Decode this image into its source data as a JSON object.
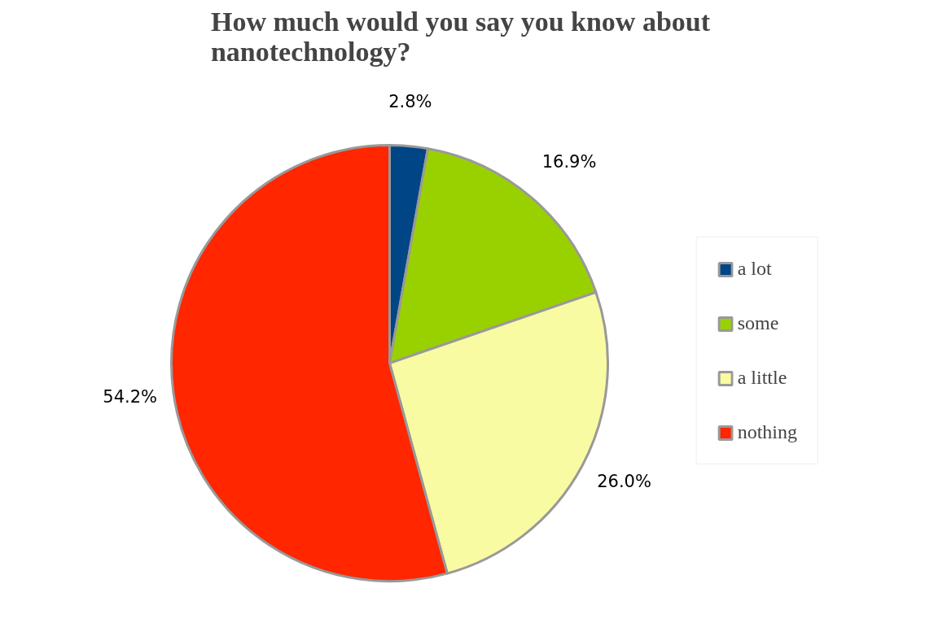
{
  "chart_data": {
    "type": "pie",
    "title": "How much would you say you know about\nnanotechnology?",
    "categories": [
      "a lot",
      "some",
      "a little",
      "nothing"
    ],
    "values": [
      2.8,
      16.9,
      26.0,
      54.2
    ],
    "colors": [
      "#004586",
      "#99d100",
      "#f9fba2",
      "#ff2600"
    ],
    "value_labels": [
      "2.8%",
      "16.9%",
      "26.0%",
      "54.2%"
    ],
    "legend": "right"
  }
}
